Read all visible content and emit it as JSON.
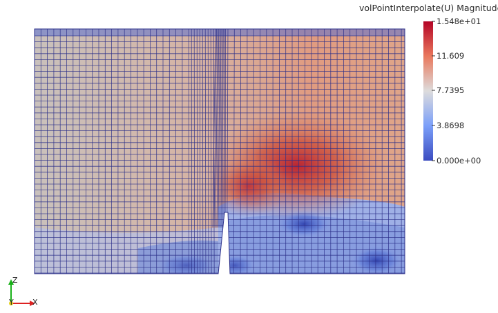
{
  "colorbar": {
    "title": "volPointInterpolate(U) Magnitude",
    "labels": [
      "1.548e+01",
      "11.609",
      "7.7395",
      "3.8698",
      "0.000e+00"
    ],
    "range": [
      0,
      15.48
    ],
    "colors": {
      "high": "#b40426",
      "mid": "#dddcdc",
      "low": "#3b4cc0"
    }
  },
  "axes": {
    "y_label": "Y",
    "z_label": "Z",
    "x_label": "X"
  },
  "mesh_color": "#2b2f8a",
  "background_color": "#ffffff"
}
